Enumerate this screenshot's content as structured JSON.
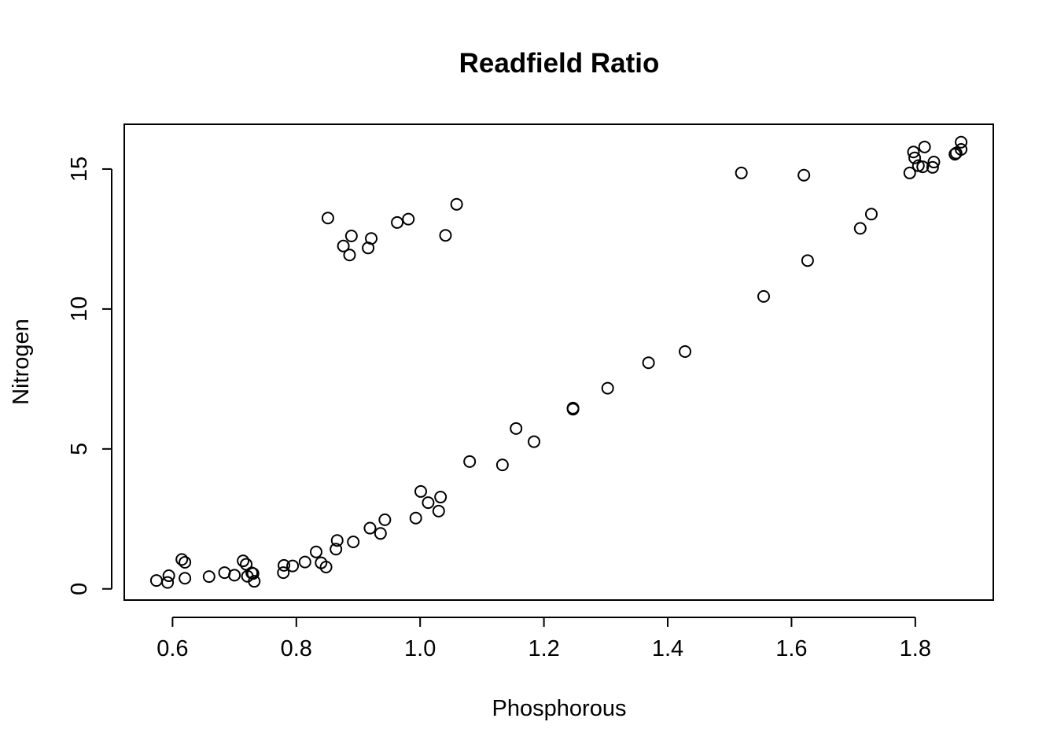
{
  "chart_data": {
    "type": "scatter",
    "title": "Readfield Ratio",
    "xlabel": "Phosphorous",
    "ylabel": "Nitrogen",
    "xlim": [
      0.522,
      1.926
    ],
    "ylim": [
      -0.4,
      16.6
    ],
    "x_ticks": [
      0.6,
      0.8,
      1.0,
      1.2,
      1.4,
      1.6,
      1.8
    ],
    "x_tick_labels": [
      "0.6",
      "0.8",
      "1.0",
      "1.2",
      "1.4",
      "1.6",
      "1.8"
    ],
    "y_ticks": [
      0,
      5,
      10,
      15
    ],
    "y_tick_labels": [
      "0",
      "5",
      "10",
      "15"
    ],
    "grid": false,
    "legend": "none",
    "marker": "open-circle",
    "series": [
      {
        "x": [
          0.574,
          0.592,
          0.594,
          0.615,
          0.62,
          0.62,
          0.659,
          0.684,
          0.7,
          0.714,
          0.719,
          0.721,
          0.728,
          0.73,
          0.732,
          0.779,
          0.78,
          0.794,
          0.814,
          0.832,
          0.84,
          0.848,
          0.864,
          0.866,
          0.892,
          0.919,
          0.936,
          0.943,
          0.993,
          1.001,
          1.013,
          1.03,
          1.033,
          1.08,
          1.133,
          1.155,
          1.184,
          1.247,
          1.247,
          1.303,
          1.369,
          1.428,
          1.555,
          1.626,
          0.851,
          0.876,
          0.886,
          0.889,
          0.916,
          0.921,
          0.963,
          0.981,
          1.041,
          1.059,
          1.519,
          1.62,
          1.711,
          1.729,
          1.791,
          1.797,
          1.799,
          1.805,
          1.812,
          1.815,
          1.828,
          1.83,
          1.864,
          1.866,
          1.874,
          1.874
        ],
        "y": [
          0.3,
          0.23,
          0.47,
          1.05,
          0.95,
          0.38,
          0.44,
          0.58,
          0.49,
          1.0,
          0.88,
          0.45,
          0.57,
          0.55,
          0.27,
          0.58,
          0.84,
          0.82,
          0.96,
          1.32,
          0.93,
          0.78,
          1.42,
          1.73,
          1.68,
          2.17,
          1.98,
          2.47,
          2.53,
          3.48,
          3.08,
          2.78,
          3.28,
          4.55,
          4.43,
          5.73,
          5.26,
          6.42,
          6.46,
          7.17,
          8.08,
          8.48,
          10.45,
          11.73,
          13.25,
          12.25,
          11.93,
          12.61,
          12.18,
          12.52,
          13.09,
          13.21,
          12.63,
          13.74,
          14.86,
          14.78,
          12.88,
          13.39,
          14.86,
          15.61,
          15.4,
          15.12,
          15.08,
          15.79,
          15.06,
          15.25,
          15.53,
          15.57,
          15.96,
          15.7
        ]
      }
    ]
  }
}
